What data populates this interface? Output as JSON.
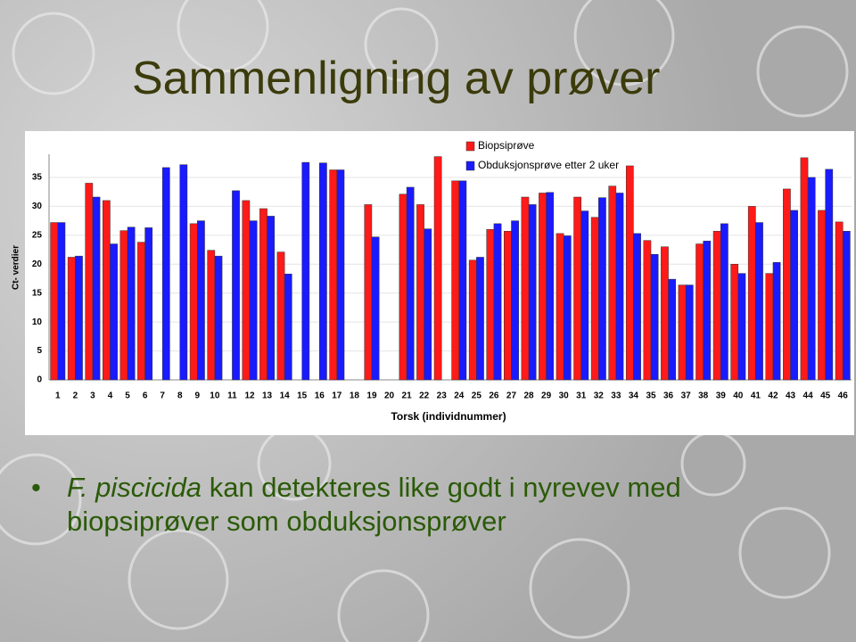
{
  "slide": {
    "title": "Sammenligning av prøver",
    "bullet": {
      "italic": "F. piscicida",
      "text": "kan detekteres like godt i nyrevev med biopsiprøver som obduksjonsprøver"
    }
  },
  "chart_data": {
    "type": "bar",
    "y_label": "Ct- verdier",
    "x_label": "Torsk (individnummer)",
    "categories": [
      "1",
      "2",
      "3",
      "4",
      "5",
      "6",
      "7",
      "8",
      "9",
      "10",
      "11",
      "12",
      "13",
      "14",
      "15",
      "16",
      "17",
      "18",
      "19",
      "20",
      "21",
      "22",
      "23",
      "24",
      "25",
      "26",
      "27",
      "28",
      "29",
      "30",
      "31",
      "32",
      "33",
      "34",
      "35",
      "36",
      "37",
      "38",
      "39",
      "40",
      "41",
      "42",
      "43",
      "44",
      "45",
      "46"
    ],
    "series": [
      {
        "name": "Biopsiprøve",
        "color": "#ff1a1a",
        "values": [
          27.2,
          21.2,
          34,
          31,
          25.8,
          23.8,
          null,
          null,
          27,
          22.4,
          null,
          31,
          29.6,
          22.1,
          null,
          null,
          36.3,
          null,
          30.3,
          null,
          32.1,
          30.3,
          38.6,
          34.4,
          20.7,
          26,
          25.7,
          31.6,
          32.3,
          25.3,
          31.6,
          28.1,
          33.5,
          37,
          24.1,
          23,
          16.4,
          23.5,
          25.7,
          20,
          30,
          18.4,
          33,
          38.4,
          29.3,
          27.3
        ]
      },
      {
        "name": "Obduksjonsprøve etter 2 uker",
        "color": "#1a1aff",
        "values": [
          27.2,
          21.4,
          31.6,
          23.5,
          26.4,
          26.3,
          36.7,
          37.2,
          27.5,
          21.4,
          32.7,
          27.5,
          28.3,
          18.3,
          37.6,
          37.5,
          36.3,
          null,
          24.7,
          null,
          33.3,
          26.1,
          null,
          34.4,
          21.2,
          27,
          27.5,
          30.3,
          32.4,
          24.9,
          29.2,
          31.5,
          32.3,
          25.3,
          21.7,
          17.4,
          16.4,
          24,
          27,
          18.4,
          27.2,
          20.3,
          29.3,
          35,
          36.4,
          25.7
        ]
      }
    ],
    "ylim": [
      0,
      39
    ],
    "yticks": [
      0,
      5,
      10,
      15,
      20,
      25,
      30,
      35
    ],
    "grid": true
  }
}
